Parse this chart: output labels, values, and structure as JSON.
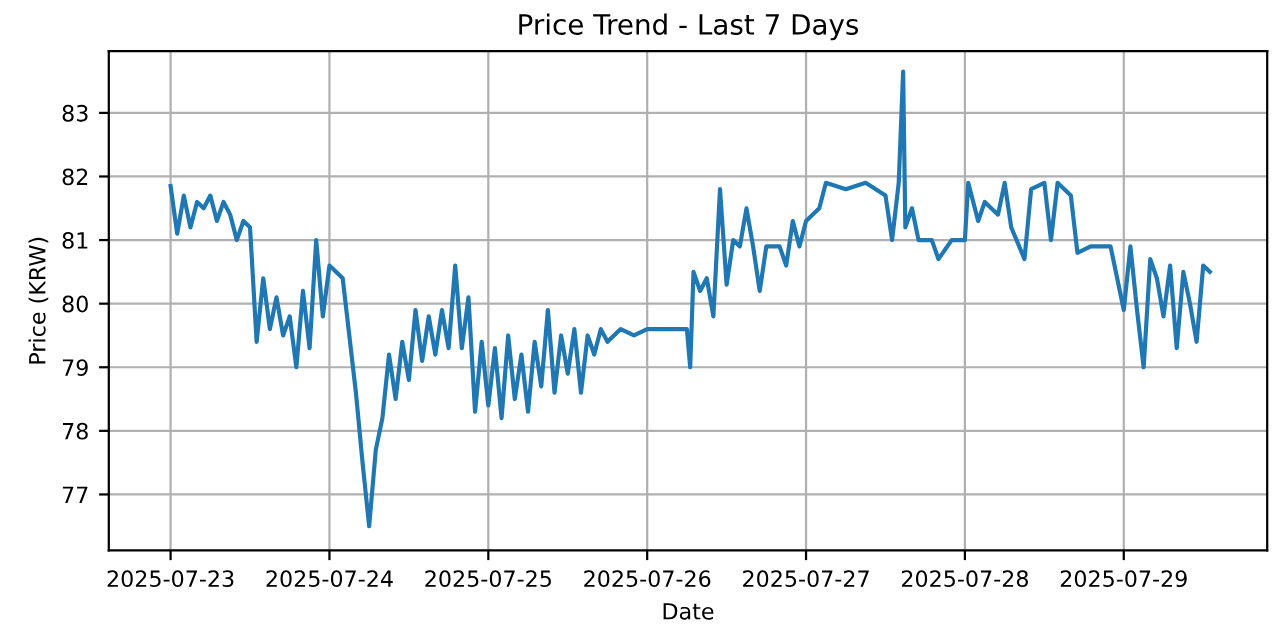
{
  "chart_data": {
    "type": "line",
    "title": "Price Trend - Last 7 Days",
    "xlabel": "Date",
    "ylabel": "Price (KRW)",
    "xlim": [
      "2025-07-22T14:40",
      "2025-07-29T21:40"
    ],
    "xticks": [
      "2025-07-23",
      "2025-07-24",
      "2025-07-25",
      "2025-07-26",
      "2025-07-27",
      "2025-07-28",
      "2025-07-29"
    ],
    "ylim": [
      76.12,
      83.97
    ],
    "yticks": [
      77,
      78,
      79,
      80,
      81,
      82,
      83
    ],
    "grid": true,
    "series": [
      {
        "color": "#1f77b4",
        "x": [
          "2025-07-23T00:00",
          "2025-07-23T01:00",
          "2025-07-23T02:00",
          "2025-07-23T03:00",
          "2025-07-23T04:00",
          "2025-07-23T05:00",
          "2025-07-23T06:00",
          "2025-07-23T07:00",
          "2025-07-23T08:00",
          "2025-07-23T09:00",
          "2025-07-23T10:00",
          "2025-07-23T11:00",
          "2025-07-23T12:00",
          "2025-07-23T13:00",
          "2025-07-23T14:00",
          "2025-07-23T15:00",
          "2025-07-23T16:00",
          "2025-07-23T17:00",
          "2025-07-23T18:00",
          "2025-07-23T19:00",
          "2025-07-23T20:00",
          "2025-07-23T21:00",
          "2025-07-23T22:00",
          "2025-07-23T23:00",
          "2025-07-24T00:00",
          "2025-07-24T02:00",
          "2025-07-24T04:00",
          "2025-07-24T05:00",
          "2025-07-24T06:00",
          "2025-07-24T07:00",
          "2025-07-24T08:00",
          "2025-07-24T09:00",
          "2025-07-24T10:00",
          "2025-07-24T11:00",
          "2025-07-24T12:00",
          "2025-07-24T13:00",
          "2025-07-24T14:00",
          "2025-07-24T15:00",
          "2025-07-24T16:00",
          "2025-07-24T17:00",
          "2025-07-24T18:00",
          "2025-07-24T19:00",
          "2025-07-24T20:00",
          "2025-07-24T21:00",
          "2025-07-24T22:00",
          "2025-07-24T23:00",
          "2025-07-25T00:00",
          "2025-07-25T01:00",
          "2025-07-25T02:00",
          "2025-07-25T03:00",
          "2025-07-25T04:00",
          "2025-07-25T05:00",
          "2025-07-25T06:00",
          "2025-07-25T07:00",
          "2025-07-25T08:00",
          "2025-07-25T09:00",
          "2025-07-25T10:00",
          "2025-07-25T11:00",
          "2025-07-25T12:00",
          "2025-07-25T13:00",
          "2025-07-25T14:00",
          "2025-07-25T15:00",
          "2025-07-25T16:00",
          "2025-07-25T17:00",
          "2025-07-25T18:00",
          "2025-07-25T20:00",
          "2025-07-25T22:00",
          "2025-07-26T00:00",
          "2025-07-26T04:00",
          "2025-07-26T06:00",
          "2025-07-26T06:30",
          "2025-07-26T07:00",
          "2025-07-26T08:00",
          "2025-07-26T09:00",
          "2025-07-26T10:00",
          "2025-07-26T11:00",
          "2025-07-26T12:00",
          "2025-07-26T13:00",
          "2025-07-26T14:00",
          "2025-07-26T15:00",
          "2025-07-26T16:00",
          "2025-07-26T17:00",
          "2025-07-26T18:00",
          "2025-07-26T20:00",
          "2025-07-26T21:00",
          "2025-07-26T22:00",
          "2025-07-26T23:00",
          "2025-07-27T00:00",
          "2025-07-27T02:00",
          "2025-07-27T03:00",
          "2025-07-27T06:00",
          "2025-07-27T09:00",
          "2025-07-27T12:00",
          "2025-07-27T13:00",
          "2025-07-27T14:00",
          "2025-07-27T14:40",
          "2025-07-27T15:00",
          "2025-07-27T16:00",
          "2025-07-27T17:00",
          "2025-07-27T19:00",
          "2025-07-27T20:00",
          "2025-07-27T22:00",
          "2025-07-28T00:00",
          "2025-07-28T00:30",
          "2025-07-28T02:00",
          "2025-07-28T03:00",
          "2025-07-28T05:00",
          "2025-07-28T06:00",
          "2025-07-28T07:00",
          "2025-07-28T09:00",
          "2025-07-28T10:00",
          "2025-07-28T12:00",
          "2025-07-28T13:00",
          "2025-07-28T14:00",
          "2025-07-28T16:00",
          "2025-07-28T17:00",
          "2025-07-28T19:00",
          "2025-07-28T22:00",
          "2025-07-29T00:00",
          "2025-07-29T01:00",
          "2025-07-29T02:00",
          "2025-07-29T03:00",
          "2025-07-29T04:00",
          "2025-07-29T05:00",
          "2025-07-29T06:00",
          "2025-07-29T07:00",
          "2025-07-29T08:00",
          "2025-07-29T09:00",
          "2025-07-29T10:00",
          "2025-07-29T11:00",
          "2025-07-29T12:00",
          "2025-07-29T13:00"
        ],
        "values": [
          81.85,
          81.1,
          81.7,
          81.2,
          81.6,
          81.5,
          81.7,
          81.3,
          81.6,
          81.4,
          81.0,
          81.3,
          81.2,
          79.4,
          80.4,
          79.6,
          80.1,
          79.5,
          79.8,
          79.0,
          80.2,
          79.3,
          81.0,
          79.8,
          80.6,
          80.4,
          78.6,
          77.5,
          76.5,
          77.7,
          78.2,
          79.2,
          78.5,
          79.4,
          78.8,
          79.9,
          79.1,
          79.8,
          79.2,
          79.9,
          79.3,
          80.6,
          79.3,
          80.1,
          78.3,
          79.4,
          78.4,
          79.3,
          78.2,
          79.5,
          78.5,
          79.2,
          78.3,
          79.4,
          78.7,
          79.9,
          78.6,
          79.5,
          78.9,
          79.6,
          78.6,
          79.5,
          79.2,
          79.6,
          79.4,
          79.6,
          79.5,
          79.6,
          79.6,
          79.6,
          79.0,
          80.5,
          80.2,
          80.4,
          79.8,
          81.8,
          80.3,
          81.0,
          80.9,
          81.5,
          80.9,
          80.2,
          80.9,
          80.9,
          80.6,
          81.3,
          80.9,
          81.3,
          81.5,
          81.9,
          81.8,
          81.9,
          81.7,
          81.0,
          81.9,
          83.65,
          81.2,
          81.5,
          81.0,
          81.0,
          80.7,
          81.0,
          81.0,
          81.9,
          81.3,
          81.6,
          81.4,
          81.9,
          81.2,
          80.7,
          81.8,
          81.9,
          81.0,
          81.9,
          81.7,
          80.8,
          80.9,
          80.9,
          79.9,
          80.9,
          79.9,
          79.0,
          80.7,
          80.4,
          79.8,
          80.6,
          79.3,
          80.5,
          80.0,
          79.4,
          80.6,
          80.5
        ]
      }
    ]
  }
}
